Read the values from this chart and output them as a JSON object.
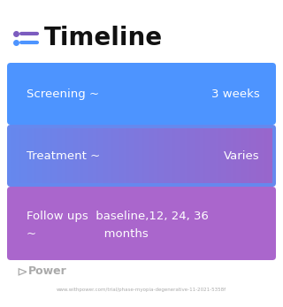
{
  "title": "Timeline",
  "title_icon_color": "#7c5cbf",
  "background_color": "#ffffff",
  "rows": [
    {
      "label": "Screening ~",
      "value": "3 weeks",
      "bg_color_left": "#4d94ff",
      "bg_color_right": "#4d94ff",
      "gradient": false,
      "text_color": "#ffffff"
    },
    {
      "label": "Treatment ~",
      "value": "Varies",
      "bg_color_left": "#6688ee",
      "bg_color_right": "#9966cc",
      "gradient": true,
      "text_color": "#ffffff"
    },
    {
      "label": "Follow ups  baseline,12, 24, 36\n~                  months",
      "value": "",
      "bg_color_left": "#aa66cc",
      "bg_color_right": "#aa66cc",
      "gradient": false,
      "text_color": "#ffffff"
    }
  ],
  "footer_text": "Power",
  "url_text": "www.withpower.com/trial/phase-myopia-degenerative-11-2021-5358f",
  "footer_color": "#aaaaaa",
  "icon_line1_color": "#7c5cbf",
  "icon_line2_color": "#4d94ff"
}
